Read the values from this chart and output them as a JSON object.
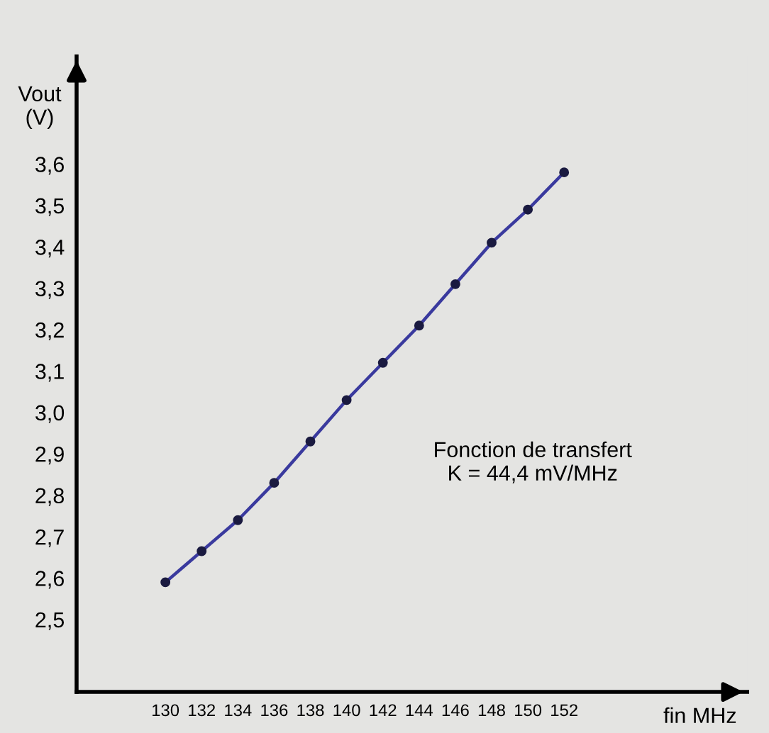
{
  "chart_data": {
    "type": "line",
    "xlabel": "fin MHz",
    "ylabel": "Vout\n(V)",
    "x": [
      130,
      132,
      134,
      136,
      138,
      140,
      142,
      144,
      146,
      148,
      150,
      152
    ],
    "series": [
      {
        "color": "#3a3a9e",
        "values": [
          2.59,
          2.665,
          2.74,
          2.83,
          2.93,
          3.03,
          3.12,
          3.21,
          3.31,
          3.41,
          3.49,
          3.58
        ]
      }
    ],
    "marker": "circle",
    "line_style": "solid",
    "grid": false,
    "legend": false,
    "xlim": [
      125.1,
      162.1
    ],
    "xticks": [
      130,
      132,
      134,
      136,
      138,
      140,
      142,
      144,
      146,
      148,
      150,
      152
    ],
    "ylim": [
      2.325,
      3.86
    ],
    "yticks": [
      {
        "value": 2.5,
        "label": "2,5"
      },
      {
        "value": 2.6,
        "label": "2,6"
      },
      {
        "value": 2.7,
        "label": "2,7"
      },
      {
        "value": 2.8,
        "label": "2,8"
      },
      {
        "value": 2.9,
        "label": "2,9"
      },
      {
        "value": 3.0,
        "label": "3,0"
      },
      {
        "value": 3.1,
        "label": "3,1"
      },
      {
        "value": 3.2,
        "label": "3,2"
      },
      {
        "value": 3.3,
        "label": "3,3"
      },
      {
        "value": 3.4,
        "label": "3,4"
      },
      {
        "value": 3.5,
        "label": "3,5"
      },
      {
        "value": 3.6,
        "label": "3,6"
      }
    ],
    "annotations": [
      "Fonction de transfert\nK = 44,4 mV/MHz"
    ]
  }
}
